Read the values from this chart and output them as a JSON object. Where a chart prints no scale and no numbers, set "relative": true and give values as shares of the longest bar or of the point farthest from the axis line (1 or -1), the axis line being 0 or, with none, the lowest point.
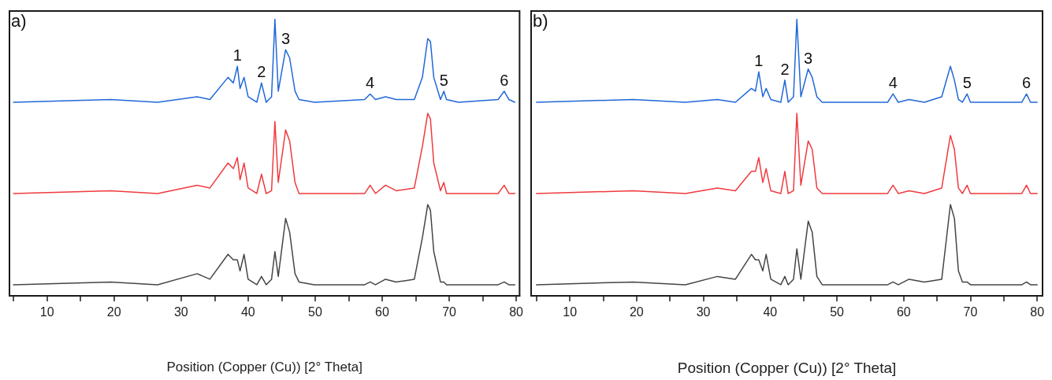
{
  "chart_data": [
    {
      "type": "line",
      "relative": true,
      "xlabel": "Position (Copper (Cu)) [2° Theta]",
      "xlim": [
        4.4,
        80.5
      ],
      "xticks": [
        {
          "value": 5,
          "label": null
        },
        10,
        {
          "value": 15,
          "label": null
        },
        20,
        {
          "value": 25,
          "label": null
        },
        30,
        {
          "value": 35,
          "label": null
        },
        40,
        {
          "value": 45,
          "label": null
        },
        50,
        {
          "value": 55,
          "label": null
        },
        60,
        {
          "value": 65,
          "label": null
        },
        70,
        {
          "value": 75,
          "label": null
        },
        80
      ],
      "tick_labels": "x",
      "grid": false,
      "marker": "none",
      "line_style": "solid",
      "x": [
        5.0,
        19.5,
        26.5,
        32.4,
        34.3,
        37.0,
        37.4,
        37.8,
        38.4,
        38.8,
        39.4,
        40.0,
        41.3,
        42.0,
        42.7,
        43.5,
        44.0,
        44.5,
        45.6,
        46.2,
        47.0,
        47.6,
        49.9,
        57.4,
        58.2,
        59.0,
        60.5,
        62.1,
        64.8,
        66.0,
        66.8,
        67.2,
        67.7,
        68.7,
        69.2,
        69.6,
        71.4,
        77.3,
        78.2,
        78.9,
        79.8
      ],
      "series": [
        {
          "color": "#2068d8",
          "values": [
            0.7,
            0.71,
            0.7,
            0.72,
            0.71,
            0.79,
            0.78,
            0.77,
            0.83,
            0.75,
            0.79,
            0.72,
            0.7,
            0.77,
            0.7,
            0.72,
            1.0,
            0.74,
            0.89,
            0.86,
            0.74,
            0.71,
            0.7,
            0.71,
            0.73,
            0.71,
            0.72,
            0.71,
            0.71,
            0.79,
            0.93,
            0.92,
            0.79,
            0.71,
            0.74,
            0.71,
            0.7,
            0.71,
            0.74,
            0.71,
            0.7
          ]
        },
        {
          "color": "#f03a3e",
          "values": [
            0.37,
            0.38,
            0.37,
            0.4,
            0.39,
            0.48,
            0.47,
            0.46,
            0.5,
            0.42,
            0.48,
            0.39,
            0.37,
            0.44,
            0.37,
            0.38,
            0.63,
            0.41,
            0.6,
            0.56,
            0.41,
            0.37,
            0.37,
            0.37,
            0.4,
            0.37,
            0.4,
            0.38,
            0.39,
            0.54,
            0.66,
            0.64,
            0.48,
            0.38,
            0.41,
            0.37,
            0.37,
            0.37,
            0.4,
            0.37,
            0.37
          ]
        },
        {
          "color": "#454545",
          "values": [
            0.04,
            0.05,
            0.04,
            0.08,
            0.06,
            0.15,
            0.14,
            0.13,
            0.13,
            0.09,
            0.15,
            0.06,
            0.04,
            0.07,
            0.04,
            0.06,
            0.16,
            0.07,
            0.28,
            0.23,
            0.08,
            0.05,
            0.04,
            0.04,
            0.05,
            0.04,
            0.06,
            0.05,
            0.06,
            0.21,
            0.33,
            0.31,
            0.16,
            0.05,
            0.05,
            0.04,
            0.04,
            0.04,
            0.05,
            0.04,
            0.04
          ]
        }
      ],
      "annotations": [
        "a)",
        {
          "text": "1",
          "x": 38.4,
          "y": 0.83
        },
        {
          "text": "2",
          "x": 42.0,
          "y": 0.77
        },
        {
          "text": "3",
          "x": 45.6,
          "y": 0.89
        },
        {
          "text": "4",
          "x": 58.2,
          "y": 0.73
        },
        {
          "text": "5",
          "x": 69.2,
          "y": 0.74
        },
        {
          "text": "6",
          "x": 78.2,
          "y": 0.74
        }
      ]
    },
    {
      "type": "line",
      "relative": true,
      "xlabel": "Position (Copper (Cu)) [2° Theta]",
      "xlim": [
        4.2,
        80.8
      ],
      "xticks": [
        {
          "value": 5,
          "label": null
        },
        10,
        {
          "value": 15,
          "label": null
        },
        20,
        {
          "value": 25,
          "label": null
        },
        30,
        {
          "value": 35,
          "label": null
        },
        40,
        {
          "value": 45,
          "label": null
        },
        50,
        {
          "value": 55,
          "label": null
        },
        60,
        {
          "value": 65,
          "label": null
        },
        70,
        {
          "value": 75,
          "label": null
        },
        80
      ],
      "tick_labels": "x",
      "grid": false,
      "marker": "none",
      "line_style": "solid",
      "x": [
        5.0,
        19.5,
        27.3,
        32.1,
        34.8,
        37.2,
        37.8,
        38.3,
        38.9,
        39.4,
        40.1,
        41.6,
        42.2,
        42.7,
        43.5,
        44.0,
        44.6,
        45.7,
        46.3,
        47.0,
        47.8,
        49.0,
        57.6,
        58.4,
        59.2,
        60.8,
        63.1,
        65.7,
        67.0,
        67.6,
        68.2,
        68.8,
        69.5,
        70.0,
        77.7,
        78.4,
        79.0,
        80.0
      ],
      "series": [
        {
          "color": "#2068d8",
          "values": [
            0.7,
            0.71,
            0.7,
            0.71,
            0.7,
            0.75,
            0.74,
            0.81,
            0.72,
            0.75,
            0.71,
            0.7,
            0.78,
            0.7,
            0.72,
            1.0,
            0.72,
            0.82,
            0.79,
            0.72,
            0.7,
            0.7,
            0.7,
            0.73,
            0.7,
            0.71,
            0.7,
            0.72,
            0.83,
            0.78,
            0.71,
            0.7,
            0.73,
            0.7,
            0.7,
            0.73,
            0.7,
            0.7
          ]
        },
        {
          "color": "#f03a3e",
          "values": [
            0.37,
            0.38,
            0.37,
            0.39,
            0.38,
            0.45,
            0.45,
            0.5,
            0.41,
            0.46,
            0.38,
            0.37,
            0.45,
            0.37,
            0.38,
            0.66,
            0.4,
            0.56,
            0.53,
            0.39,
            0.37,
            0.37,
            0.37,
            0.4,
            0.37,
            0.38,
            0.37,
            0.39,
            0.58,
            0.53,
            0.39,
            0.37,
            0.4,
            0.37,
            0.37,
            0.4,
            0.37,
            0.37
          ]
        },
        {
          "color": "#454545",
          "values": [
            0.04,
            0.05,
            0.04,
            0.07,
            0.06,
            0.15,
            0.13,
            0.13,
            0.09,
            0.15,
            0.06,
            0.04,
            0.07,
            0.04,
            0.06,
            0.17,
            0.06,
            0.27,
            0.23,
            0.07,
            0.04,
            0.04,
            0.04,
            0.05,
            0.04,
            0.06,
            0.05,
            0.06,
            0.33,
            0.28,
            0.09,
            0.05,
            0.05,
            0.04,
            0.04,
            0.05,
            0.04,
            0.04
          ]
        }
      ],
      "annotations": [
        "b)",
        {
          "text": "1",
          "x": 38.3,
          "y": 0.81
        },
        {
          "text": "2",
          "x": 42.2,
          "y": 0.78
        },
        {
          "text": "3",
          "x": 45.7,
          "y": 0.82
        },
        {
          "text": "4",
          "x": 58.4,
          "y": 0.73
        },
        {
          "text": "5",
          "x": 69.5,
          "y": 0.73
        },
        {
          "text": "6",
          "x": 78.4,
          "y": 0.73
        }
      ]
    }
  ]
}
